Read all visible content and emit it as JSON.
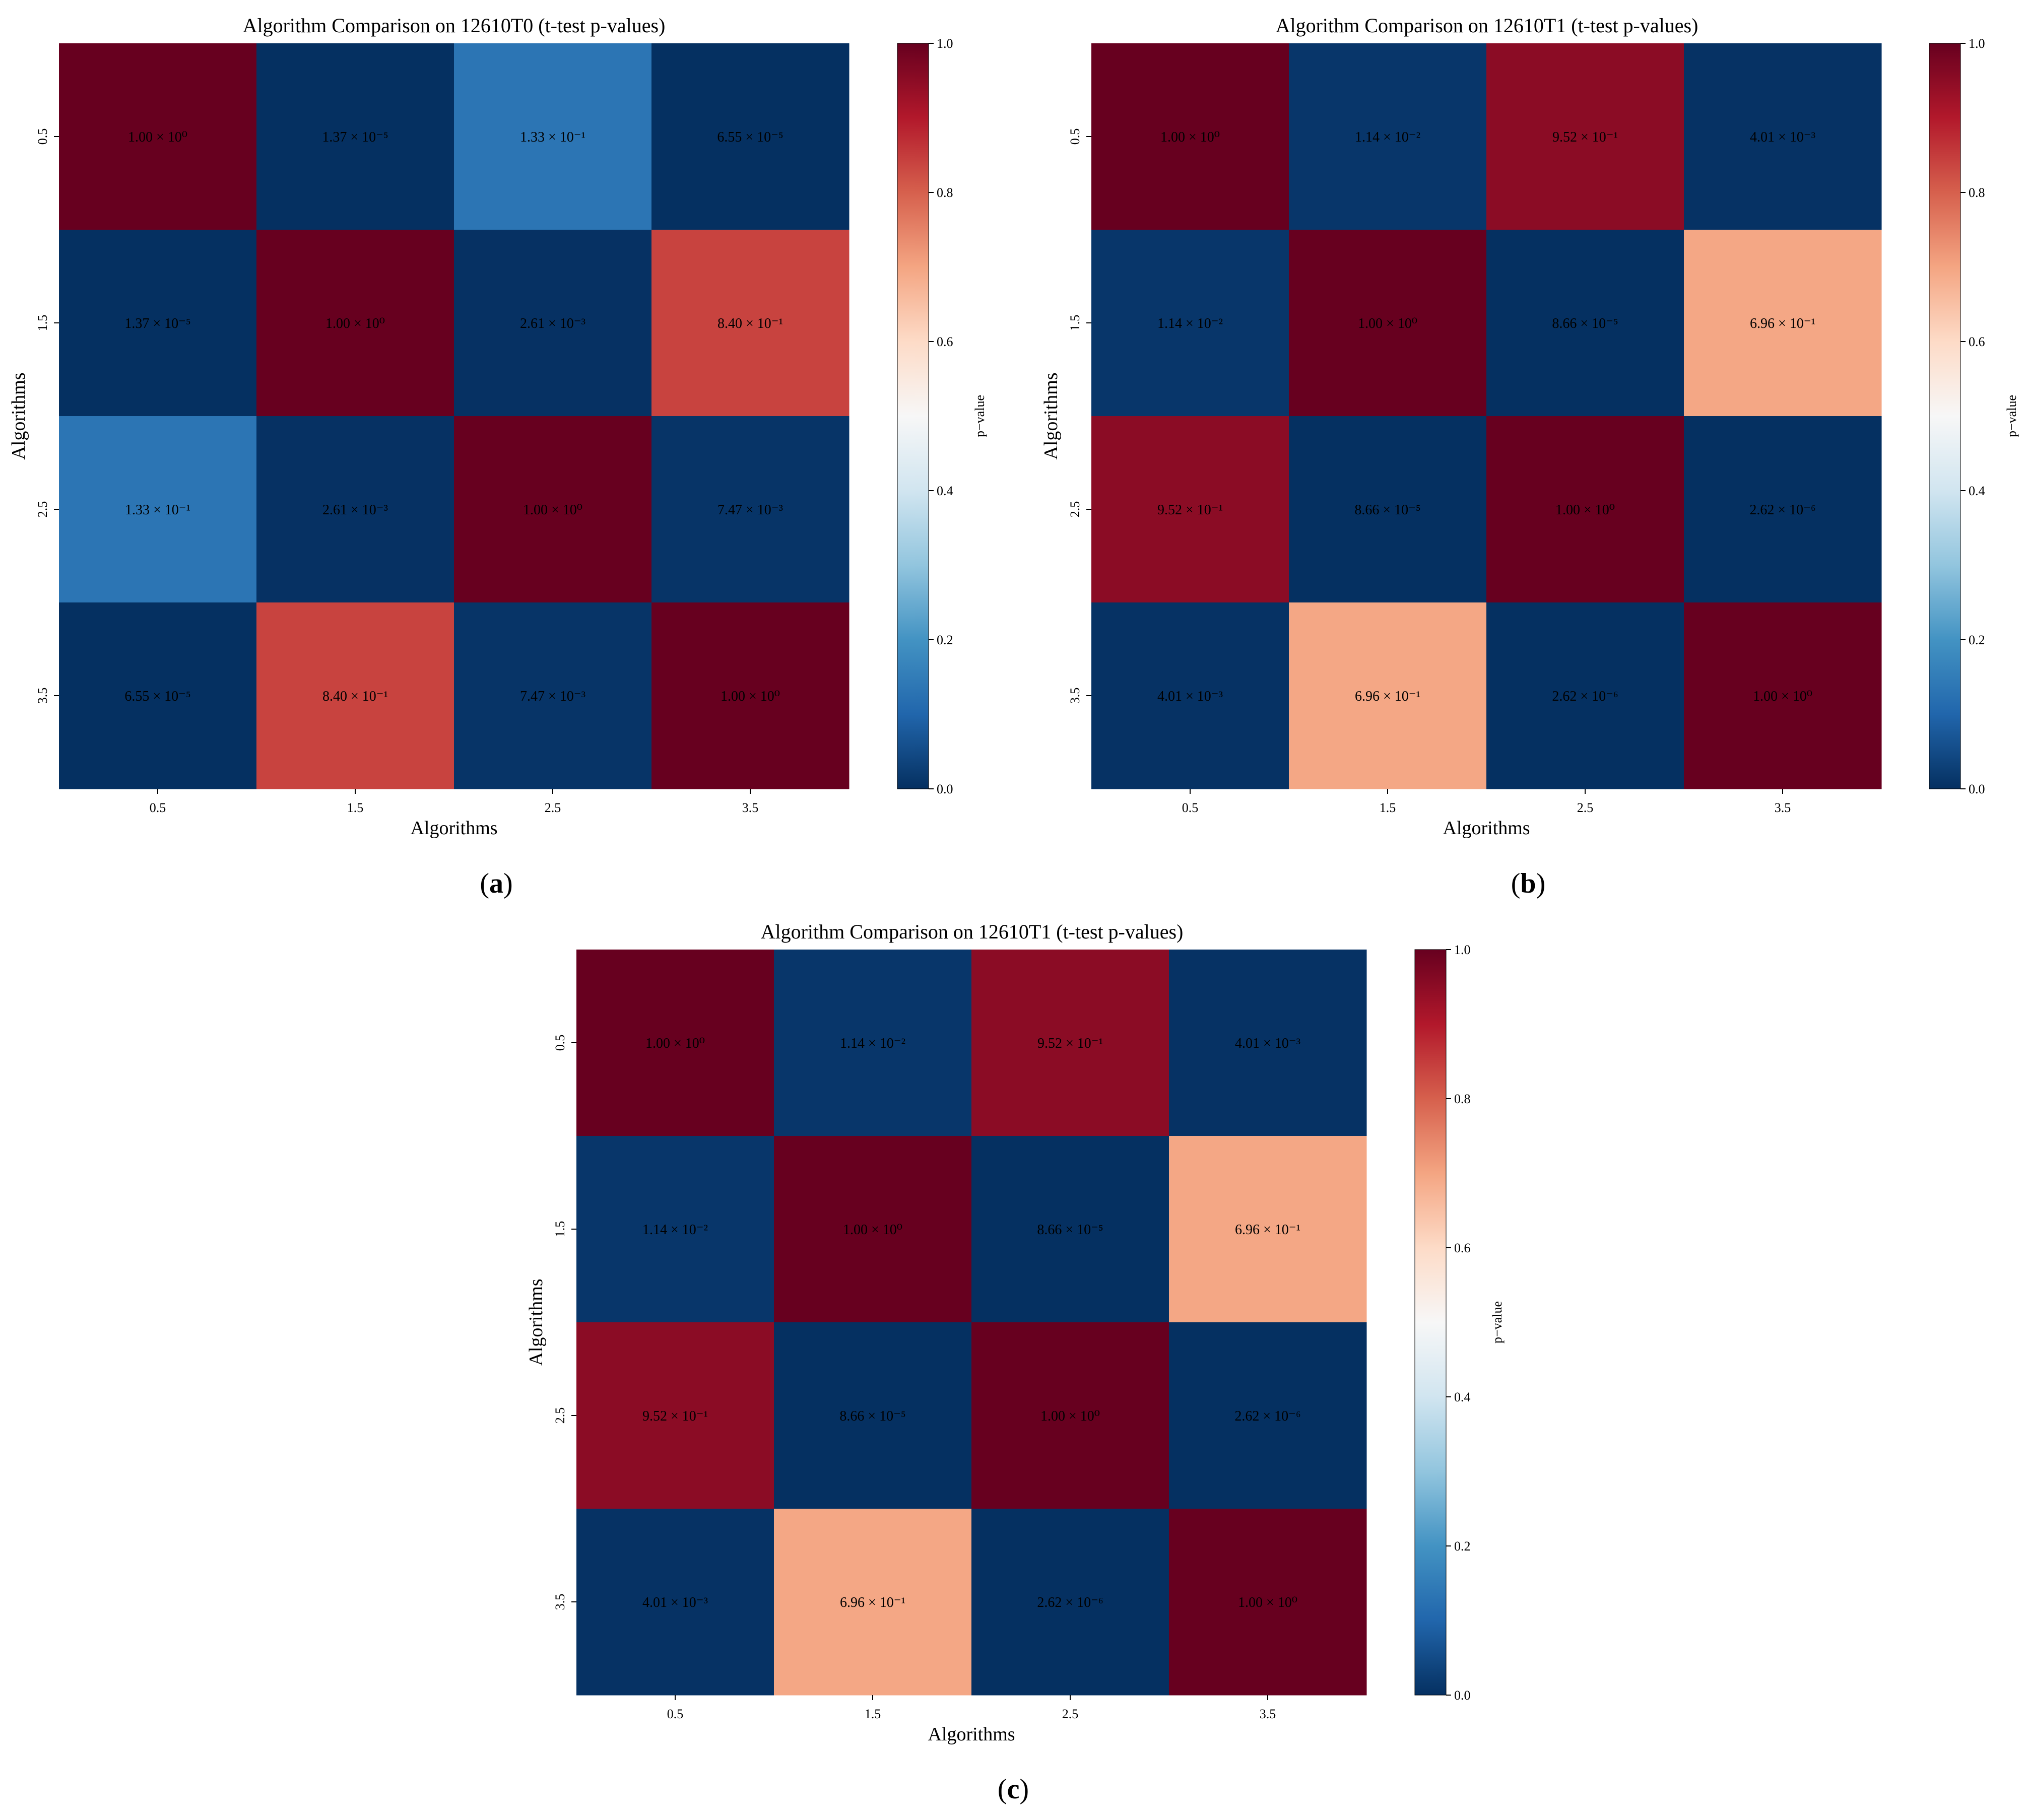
{
  "figure": {
    "panel_labels": [
      "a",
      "b",
      "c"
    ]
  },
  "colorscale": {
    "name": "RdBu_r",
    "stops": [
      [
        0.0,
        "#053061"
      ],
      [
        0.1,
        "#2166ac"
      ],
      [
        0.2,
        "#4393c3"
      ],
      [
        0.3,
        "#92c5de"
      ],
      [
        0.4,
        "#d1e5f0"
      ],
      [
        0.5,
        "#f7f7f7"
      ],
      [
        0.6,
        "#fddbc7"
      ],
      [
        0.7,
        "#f4a582"
      ],
      [
        0.8,
        "#d6604d"
      ],
      [
        0.9,
        "#b2182b"
      ],
      [
        1.0,
        "#67001f"
      ]
    ]
  },
  "chart_data": [
    {
      "type": "heatmap",
      "title": "Algorithm Comparison on 12610T0 (t-test p-values)",
      "xlabel": "Algorithms",
      "ylabel": "Algorithms",
      "x_ticks": [
        "0.5",
        "1.5",
        "2.5",
        "3.5"
      ],
      "y_ticks": [
        "0.5",
        "1.5",
        "2.5",
        "3.5"
      ],
      "values": [
        [
          1.0,
          1.37e-05,
          0.133,
          6.55e-05
        ],
        [
          1.37e-05,
          1.0,
          0.00261,
          0.84
        ],
        [
          0.133,
          0.00261,
          1.0,
          0.00747
        ],
        [
          6.55e-05,
          0.84,
          0.00747,
          1.0
        ]
      ],
      "cell_labels": [
        [
          "1.00 × 10⁰",
          "1.37 × 10⁻⁵",
          "1.33 × 10⁻¹",
          "6.55 × 10⁻⁵"
        ],
        [
          "1.37 × 10⁻⁵",
          "1.00 × 10⁰",
          "2.61 × 10⁻³",
          "8.40 × 10⁻¹"
        ],
        [
          "1.33 × 10⁻¹",
          "2.61 × 10⁻³",
          "1.00 × 10⁰",
          "7.47 × 10⁻³"
        ],
        [
          "6.55 × 10⁻⁵",
          "8.40 × 10⁻¹",
          "7.47 × 10⁻³",
          "1.00 × 10⁰"
        ]
      ],
      "colorbar": {
        "label": "p−value",
        "range": [
          0,
          1
        ],
        "ticks": [
          "0.0",
          "0.2",
          "0.4",
          "0.6",
          "0.8",
          "1.0"
        ]
      }
    },
    {
      "type": "heatmap",
      "title": "Algorithm Comparison on 12610T1 (t-test p-values)",
      "xlabel": "Algorithms",
      "ylabel": "Algorithms",
      "x_ticks": [
        "0.5",
        "1.5",
        "2.5",
        "3.5"
      ],
      "y_ticks": [
        "0.5",
        "1.5",
        "2.5",
        "3.5"
      ],
      "values": [
        [
          1.0,
          0.0114,
          0.952,
          0.00401
        ],
        [
          0.0114,
          1.0,
          8.66e-05,
          0.696
        ],
        [
          0.952,
          8.66e-05,
          1.0,
          2.62e-06
        ],
        [
          0.00401,
          0.696,
          2.62e-06,
          1.0
        ]
      ],
      "cell_labels": [
        [
          "1.00 × 10⁰",
          "1.14 × 10⁻²",
          "9.52 × 10⁻¹",
          "4.01 × 10⁻³"
        ],
        [
          "1.14 × 10⁻²",
          "1.00 × 10⁰",
          "8.66 × 10⁻⁵",
          "6.96 × 10⁻¹"
        ],
        [
          "9.52 × 10⁻¹",
          "8.66 × 10⁻⁵",
          "1.00 × 10⁰",
          "2.62 × 10⁻⁶"
        ],
        [
          "4.01 × 10⁻³",
          "6.96 × 10⁻¹",
          "2.62 × 10⁻⁶",
          "1.00 × 10⁰"
        ]
      ],
      "colorbar": {
        "label": "p−value",
        "range": [
          0,
          1
        ],
        "ticks": [
          "0.0",
          "0.2",
          "0.4",
          "0.6",
          "0.8",
          "1.0"
        ]
      }
    },
    {
      "type": "heatmap",
      "title": "Algorithm Comparison on 12610T1 (t-test p-values)",
      "xlabel": "Algorithms",
      "ylabel": "Algorithms",
      "x_ticks": [
        "0.5",
        "1.5",
        "2.5",
        "3.5"
      ],
      "y_ticks": [
        "0.5",
        "1.5",
        "2.5",
        "3.5"
      ],
      "values": [
        [
          1.0,
          0.0114,
          0.952,
          0.00401
        ],
        [
          0.0114,
          1.0,
          8.66e-05,
          0.696
        ],
        [
          0.952,
          8.66e-05,
          1.0,
          2.62e-06
        ],
        [
          0.00401,
          0.696,
          2.62e-06,
          1.0
        ]
      ],
      "cell_labels": [
        [
          "1.00 × 10⁰",
          "1.14 × 10⁻²",
          "9.52 × 10⁻¹",
          "4.01 × 10⁻³"
        ],
        [
          "1.14 × 10⁻²",
          "1.00 × 10⁰",
          "8.66 × 10⁻⁵",
          "6.96 × 10⁻¹"
        ],
        [
          "9.52 × 10⁻¹",
          "8.66 × 10⁻⁵",
          "1.00 × 10⁰",
          "2.62 × 10⁻⁶"
        ],
        [
          "4.01 × 10⁻³",
          "6.96 × 10⁻¹",
          "2.62 × 10⁻⁶",
          "1.00 × 10⁰"
        ]
      ],
      "colorbar": {
        "label": "p−value",
        "range": [
          0,
          1
        ],
        "ticks": [
          "0.0",
          "0.2",
          "0.4",
          "0.6",
          "0.8",
          "1.0"
        ]
      }
    }
  ]
}
